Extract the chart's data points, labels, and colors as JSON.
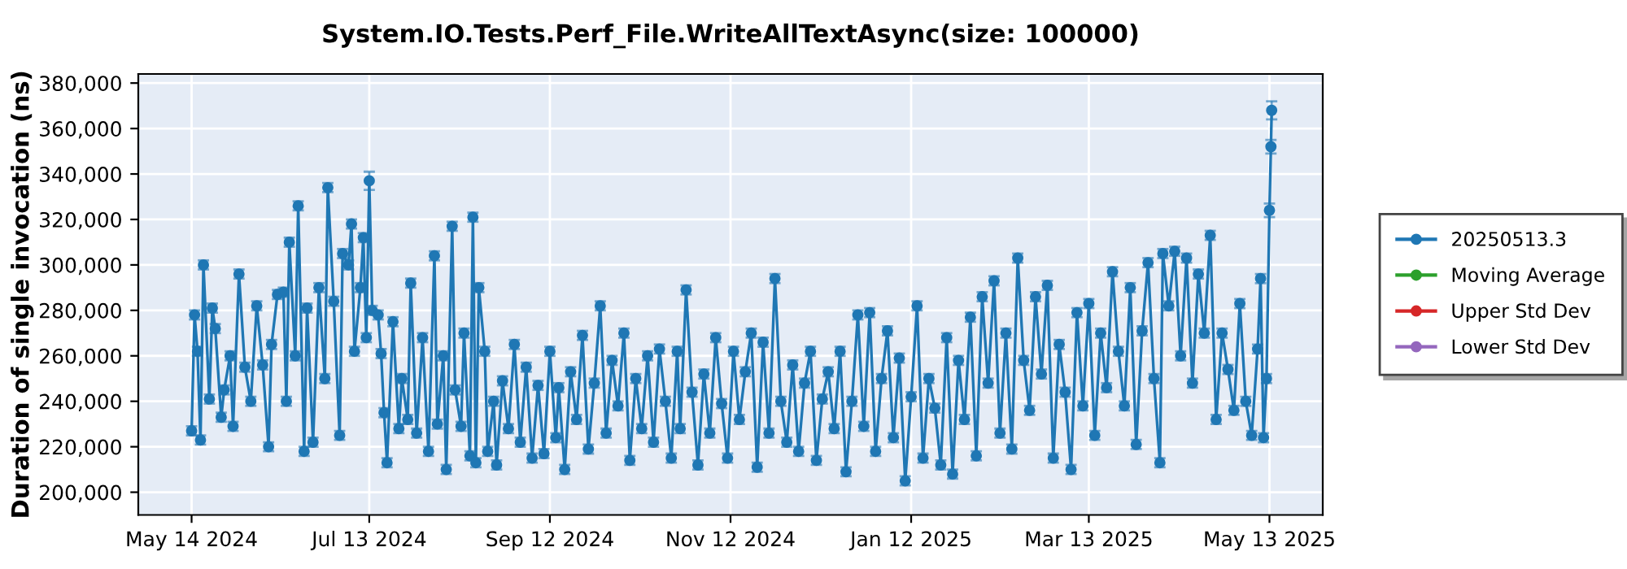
{
  "chart_data": {
    "type": "line",
    "title": "System.IO.Tests.Perf_File.WriteAllTextAsync(size: 100000)",
    "ylabel": "Duration of single invocation (ns)",
    "xlim": [
      "2024-04-26",
      "2025-05-31"
    ],
    "xticks": [
      {
        "value": "2024-05-14",
        "label": "May 14 2024"
      },
      {
        "value": "2024-07-13",
        "label": "Jul 13 2024"
      },
      {
        "value": "2024-09-12",
        "label": "Sep 12 2024"
      },
      {
        "value": "2024-11-12",
        "label": "Nov 12 2024"
      },
      {
        "value": "2025-01-12",
        "label": "Jan 12 2025"
      },
      {
        "value": "2025-03-13",
        "label": "Mar 13 2025"
      },
      {
        "value": "2025-05-13",
        "label": "May 13 2025"
      }
    ],
    "ylim": [
      190000,
      384000
    ],
    "yticks": [
      {
        "value": 200000,
        "label": "200,000"
      },
      {
        "value": 220000,
        "label": "220,000"
      },
      {
        "value": 240000,
        "label": "240,000"
      },
      {
        "value": 260000,
        "label": "260,000"
      },
      {
        "value": 280000,
        "label": "280,000"
      },
      {
        "value": 300000,
        "label": "300,000"
      },
      {
        "value": 320000,
        "label": "320,000"
      },
      {
        "value": 340000,
        "label": "340,000"
      },
      {
        "value": 360000,
        "label": "360,000"
      },
      {
        "value": 380000,
        "label": "380,000"
      }
    ],
    "grid": true,
    "legend": "right",
    "marker": "circle",
    "line_style": "solid",
    "series": [
      {
        "name": "20250513.3",
        "color": "#1f77b4",
        "x": [
          "2024-05-14",
          "2024-05-15",
          "2024-05-16",
          "2024-05-17",
          "2024-05-18",
          "2024-05-20",
          "2024-05-21",
          "2024-05-22",
          "2024-05-24",
          "2024-05-25",
          "2024-05-27",
          "2024-05-28",
          "2024-05-30",
          "2024-06-01",
          "2024-06-03",
          "2024-06-05",
          "2024-06-07",
          "2024-06-09",
          "2024-06-10",
          "2024-06-12",
          "2024-06-14",
          "2024-06-15",
          "2024-06-16",
          "2024-06-18",
          "2024-06-19",
          "2024-06-21",
          "2024-06-22",
          "2024-06-24",
          "2024-06-26",
          "2024-06-28",
          "2024-06-29",
          "2024-07-01",
          "2024-07-03",
          "2024-07-04",
          "2024-07-06",
          "2024-07-07",
          "2024-07-08",
          "2024-07-10",
          "2024-07-11",
          "2024-07-12",
          "2024-07-13",
          "2024-07-14",
          "2024-07-16",
          "2024-07-17",
          "2024-07-18",
          "2024-07-19",
          "2024-07-21",
          "2024-07-23",
          "2024-07-24",
          "2024-07-26",
          "2024-07-27",
          "2024-07-29",
          "2024-07-31",
          "2024-08-02",
          "2024-08-04",
          "2024-08-05",
          "2024-08-07",
          "2024-08-08",
          "2024-08-10",
          "2024-08-11",
          "2024-08-13",
          "2024-08-14",
          "2024-08-16",
          "2024-08-17",
          "2024-08-18",
          "2024-08-19",
          "2024-08-21",
          "2024-08-22",
          "2024-08-24",
          "2024-08-25",
          "2024-08-27",
          "2024-08-29",
          "2024-08-31",
          "2024-09-02",
          "2024-09-04",
          "2024-09-06",
          "2024-09-08",
          "2024-09-10",
          "2024-09-12",
          "2024-09-14",
          "2024-09-15",
          "2024-09-17",
          "2024-09-19",
          "2024-09-21",
          "2024-09-23",
          "2024-09-25",
          "2024-09-27",
          "2024-09-29",
          "2024-10-01",
          "2024-10-03",
          "2024-10-05",
          "2024-10-07",
          "2024-10-09",
          "2024-10-11",
          "2024-10-13",
          "2024-10-15",
          "2024-10-17",
          "2024-10-19",
          "2024-10-21",
          "2024-10-23",
          "2024-10-25",
          "2024-10-26",
          "2024-10-28",
          "2024-10-30",
          "2024-11-01",
          "2024-11-03",
          "2024-11-05",
          "2024-11-07",
          "2024-11-09",
          "2024-11-11",
          "2024-11-13",
          "2024-11-15",
          "2024-11-17",
          "2024-11-19",
          "2024-11-21",
          "2024-11-23",
          "2024-11-25",
          "2024-11-27",
          "2024-11-29",
          "2024-12-01",
          "2024-12-03",
          "2024-12-05",
          "2024-12-07",
          "2024-12-09",
          "2024-12-11",
          "2024-12-13",
          "2024-12-15",
          "2024-12-17",
          "2024-12-19",
          "2024-12-21",
          "2024-12-23",
          "2024-12-25",
          "2024-12-27",
          "2024-12-29",
          "2024-12-31",
          "2025-01-02",
          "2025-01-04",
          "2025-01-06",
          "2025-01-08",
          "2025-01-10",
          "2025-01-12",
          "2025-01-14",
          "2025-01-16",
          "2025-01-18",
          "2025-01-20",
          "2025-01-22",
          "2025-01-24",
          "2025-01-26",
          "2025-01-28",
          "2025-01-30",
          "2025-02-01",
          "2025-02-03",
          "2025-02-05",
          "2025-02-07",
          "2025-02-09",
          "2025-02-11",
          "2025-02-13",
          "2025-02-15",
          "2025-02-17",
          "2025-02-19",
          "2025-02-21",
          "2025-02-23",
          "2025-02-25",
          "2025-02-27",
          "2025-03-01",
          "2025-03-03",
          "2025-03-05",
          "2025-03-07",
          "2025-03-09",
          "2025-03-11",
          "2025-03-13",
          "2025-03-15",
          "2025-03-17",
          "2025-03-19",
          "2025-03-21",
          "2025-03-23",
          "2025-03-25",
          "2025-03-27",
          "2025-03-29",
          "2025-03-31",
          "2025-04-02",
          "2025-04-04",
          "2025-04-06",
          "2025-04-07",
          "2025-04-09",
          "2025-04-11",
          "2025-04-13",
          "2025-04-15",
          "2025-04-17",
          "2025-04-19",
          "2025-04-21",
          "2025-04-23",
          "2025-04-25",
          "2025-04-27",
          "2025-04-29",
          "2025-05-01",
          "2025-05-03",
          "2025-05-05",
          "2025-05-07",
          "2025-05-09",
          "2025-05-10",
          "2025-05-11",
          "2025-05-12",
          "2025-05-13",
          "2025-05-13T12:00",
          "2025-05-13T18:00"
        ],
        "values": [
          227000,
          278000,
          262000,
          223000,
          300000,
          241000,
          281000,
          272000,
          233000,
          245000,
          260000,
          229000,
          296000,
          255000,
          240000,
          282000,
          256000,
          220000,
          265000,
          287000,
          288000,
          240000,
          310000,
          260000,
          326000,
          218000,
          281000,
          222000,
          290000,
          250000,
          334000,
          284000,
          225000,
          305000,
          300000,
          318000,
          262000,
          290000,
          312000,
          268000,
          337000,
          280000,
          278000,
          261000,
          235000,
          213000,
          275000,
          228000,
          250000,
          232000,
          292000,
          226000,
          268000,
          218000,
          304000,
          230000,
          260000,
          210000,
          317000,
          245000,
          229000,
          270000,
          216000,
          321000,
          213000,
          290000,
          262000,
          218000,
          240000,
          212000,
          249000,
          228000,
          265000,
          222000,
          255000,
          215000,
          247000,
          217000,
          262000,
          224000,
          246000,
          210000,
          253000,
          232000,
          269000,
          219000,
          248000,
          282000,
          226000,
          258000,
          238000,
          270000,
          214000,
          250000,
          228000,
          260000,
          222000,
          263000,
          240000,
          215000,
          262000,
          228000,
          289000,
          244000,
          212000,
          252000,
          226000,
          268000,
          239000,
          215000,
          262000,
          232000,
          253000,
          270000,
          211000,
          266000,
          226000,
          294000,
          240000,
          222000,
          256000,
          218000,
          248000,
          262000,
          214000,
          241000,
          253000,
          228000,
          262000,
          209000,
          240000,
          278000,
          229000,
          279000,
          218000,
          250000,
          271000,
          224000,
          259000,
          205000,
          242000,
          282000,
          215000,
          250000,
          237000,
          212000,
          268000,
          208000,
          258000,
          232000,
          277000,
          216000,
          286000,
          248000,
          293000,
          226000,
          270000,
          219000,
          303000,
          258000,
          236000,
          286000,
          252000,
          291000,
          215000,
          265000,
          244000,
          210000,
          279000,
          238000,
          283000,
          225000,
          270000,
          246000,
          297000,
          262000,
          238000,
          290000,
          221000,
          271000,
          301000,
          250000,
          213000,
          305000,
          282000,
          306000,
          260000,
          303000,
          248000,
          296000,
          270000,
          313000,
          232000,
          270000,
          254000,
          236000,
          283000,
          240000,
          225000,
          263000,
          294000,
          224000,
          250000,
          324000,
          352000,
          368000
        ],
        "errors": [
          2000,
          2000,
          2000,
          2000,
          2000,
          2000,
          2000,
          2000,
          2000,
          2000,
          2000,
          2000,
          2000,
          2000,
          2000,
          2000,
          2000,
          2000,
          2000,
          2000,
          2000,
          2000,
          2000,
          2000,
          2000,
          2000,
          2000,
          2000,
          2000,
          2000,
          2000,
          2000,
          2000,
          2000,
          2000,
          2000,
          2000,
          2000,
          2000,
          2000,
          4000,
          2000,
          2000,
          2000,
          2000,
          2000,
          2000,
          2000,
          2000,
          2000,
          2000,
          2000,
          2000,
          2000,
          2000,
          2000,
          2000,
          2000,
          2000,
          2000,
          2000,
          2000,
          2000,
          2000,
          2000,
          2000,
          2000,
          2000,
          2000,
          2000,
          2000,
          2000,
          2000,
          2000,
          2000,
          2000,
          2000,
          2000,
          2000,
          2000,
          2000,
          2000,
          2000,
          2000,
          2000,
          2000,
          2000,
          2000,
          2000,
          2000,
          2000,
          2000,
          2000,
          2000,
          2000,
          2000,
          2000,
          2000,
          2000,
          2000,
          2000,
          2000,
          2000,
          2000,
          2000,
          2000,
          2000,
          2000,
          2000,
          2000,
          2000,
          2000,
          2000,
          2000,
          2000,
          2000,
          2000,
          2000,
          2000,
          2000,
          2000,
          2000,
          2000,
          2000,
          2000,
          2000,
          2000,
          2000,
          2000,
          2000,
          2000,
          2000,
          2000,
          2000,
          2000,
          2000,
          2000,
          2000,
          2000,
          2000,
          2000,
          2000,
          2000,
          2000,
          2000,
          2000,
          2000,
          2000,
          2000,
          2000,
          2000,
          2000,
          2000,
          2000,
          2000,
          2000,
          2000,
          2000,
          2000,
          2000,
          2000,
          2000,
          2000,
          2000,
          2000,
          2000,
          2000,
          2000,
          2000,
          2000,
          2000,
          2000,
          2000,
          2000,
          2000,
          2000,
          2000,
          2000,
          2000,
          2000,
          2000,
          2000,
          2000,
          2000,
          2000,
          2000,
          2000,
          2000,
          2000,
          2000,
          2000,
          2000,
          2000,
          2000,
          2000,
          2000,
          2000,
          2000,
          2000,
          2000,
          2000,
          2000,
          2000,
          3000,
          3000,
          4000
        ]
      },
      {
        "name": "Moving Average",
        "color": "#2ca02c"
      },
      {
        "name": "Upper Std Dev",
        "color": "#d62728"
      },
      {
        "name": "Lower Std Dev",
        "color": "#9467bd"
      }
    ]
  }
}
